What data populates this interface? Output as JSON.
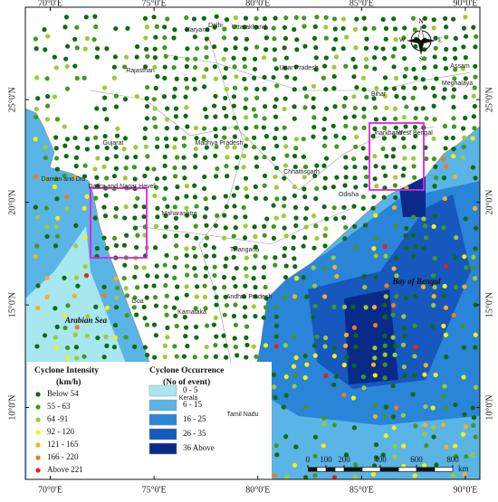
{
  "map": {
    "lon_range": [
      68.8,
      90.7
    ],
    "lat_range": [
      6.5,
      29.5
    ],
    "lon_labels": [
      {
        "value": 70,
        "label": "70°0'E"
      },
      {
        "value": 75,
        "label": "75°0'E"
      },
      {
        "value": 80,
        "label": "80°0'E"
      },
      {
        "value": 85,
        "label": "85°0'E"
      },
      {
        "value": 90,
        "label": "90°0'E"
      }
    ],
    "lat_labels": [
      {
        "value": 25,
        "label": "25°0'N"
      },
      {
        "value": 20,
        "label": "20°0'N"
      },
      {
        "value": 15,
        "label": "15°0'N"
      },
      {
        "value": 10,
        "label": "10°0'N"
      }
    ],
    "places": [
      "Delhi",
      "Haryana",
      "Uttarakhand",
      "Rajasthan",
      "Uttar Pradesh",
      "Bihar",
      "Assam",
      "Meghalaya",
      "Gujarat",
      "Madhya Pradesh",
      "Jharkhand",
      "West Bengal",
      "Chhattisgarh",
      "Daman and Diu",
      "Dadra and Nagar Haveli",
      "Maharashtra",
      "Odisha",
      "Telangana",
      "Andhra Pradesh",
      "Goa",
      "Karnataka",
      "Kerala",
      "Tamil Nadu"
    ],
    "sea_labels": [
      "Bay of Bengal",
      "Arabian Sea"
    ],
    "compass": [
      "N",
      "W",
      "E",
      "S"
    ]
  },
  "legend": {
    "intensity": {
      "title": "Cyclone Intensity",
      "unit": "(km/h)",
      "classes": [
        {
          "label": "Below 54",
          "color": "#0f6b0f"
        },
        {
          "label": "55 - 63",
          "color": "#3f9a1c"
        },
        {
          "label": "64 -91",
          "color": "#9acd32"
        },
        {
          "label": "92 - 120",
          "color": "#f2f20f"
        },
        {
          "label": "121 - 165",
          "color": "#f5b021"
        },
        {
          "label": "166 - 220",
          "color": "#f07b1c"
        },
        {
          "label": "Above 221",
          "color": "#e8201a"
        }
      ]
    },
    "occurrence": {
      "title": "Cyclone Occurrence",
      "unit": "(No of event)",
      "classes": [
        {
          "label": "0 - 5",
          "color": "#a8e6f0"
        },
        {
          "label": "6 - 15",
          "color": "#5ab4e5"
        },
        {
          "label": "16 - 25",
          "color": "#2a84d8"
        },
        {
          "label": "26 - 35",
          "color": "#1658bd"
        },
        {
          "label": "36 Above",
          "color": "#0a2a8a"
        }
      ]
    }
  },
  "scale_bar": {
    "ticks": [
      0,
      100,
      200,
      400,
      600,
      800
    ],
    "unit": "km"
  }
}
